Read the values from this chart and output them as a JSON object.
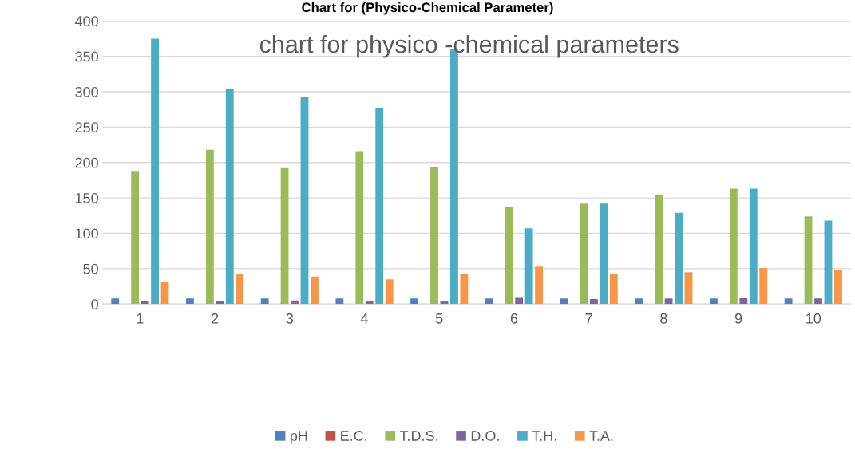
{
  "chart_data": {
    "type": "bar",
    "title": "Chart for (Physico-Chemical Parameter)",
    "categories": [
      "1",
      "2",
      "3",
      "4",
      "5",
      "6",
      "7",
      "8",
      "9",
      "10"
    ],
    "series": [
      {
        "name": "pH",
        "color": "#4f81bd",
        "values": [
          8,
          8,
          8,
          8,
          8,
          8,
          8,
          8,
          8,
          8
        ]
      },
      {
        "name": "E.C.",
        "color": "#c0504d",
        "values": [
          0,
          0,
          0,
          0,
          0,
          0,
          0,
          0,
          0,
          0
        ]
      },
      {
        "name": "T.D.S.",
        "color": "#9bbb59",
        "values": [
          187,
          218,
          192,
          216,
          194,
          137,
          142,
          155,
          163,
          124
        ]
      },
      {
        "name": "D.O.",
        "color": "#8064a2",
        "values": [
          4,
          4,
          5,
          4,
          4,
          10,
          7,
          8,
          9,
          8
        ]
      },
      {
        "name": "T.H.",
        "color": "#4bacc6",
        "values": [
          375,
          304,
          293,
          277,
          360,
          107,
          142,
          129,
          163,
          118
        ]
      },
      {
        "name": "T.A.",
        "color": "#f79646",
        "values": [
          32,
          42,
          39,
          35,
          42,
          53,
          42,
          45,
          51,
          48
        ]
      }
    ],
    "annotations": [
      "chart for physico -chemical parameters"
    ],
    "ylim": [
      0,
      400
    ],
    "yticks": [
      0,
      50,
      100,
      150,
      200,
      250,
      300,
      350,
      400
    ],
    "grid": "y",
    "legend": "bottom"
  }
}
